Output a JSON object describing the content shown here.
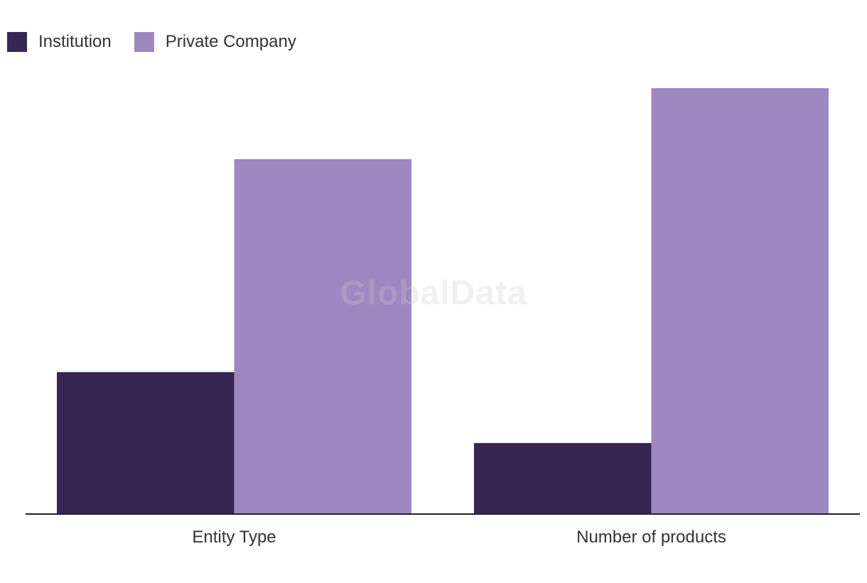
{
  "chart_data": {
    "type": "bar",
    "title": "",
    "xlabel": "",
    "ylabel": "",
    "categories": [
      "Entity Type",
      "Number of products"
    ],
    "series": [
      {
        "name": "Institution",
        "values": [
          2,
          1
        ],
        "color": "#372554"
      },
      {
        "name": "Private Company",
        "values": [
          5,
          6
        ],
        "color": "#9f87c1"
      }
    ],
    "ylim": [
      0,
      6
    ],
    "grid": false,
    "legend_position": "top-left"
  },
  "watermark": "GlobalData"
}
